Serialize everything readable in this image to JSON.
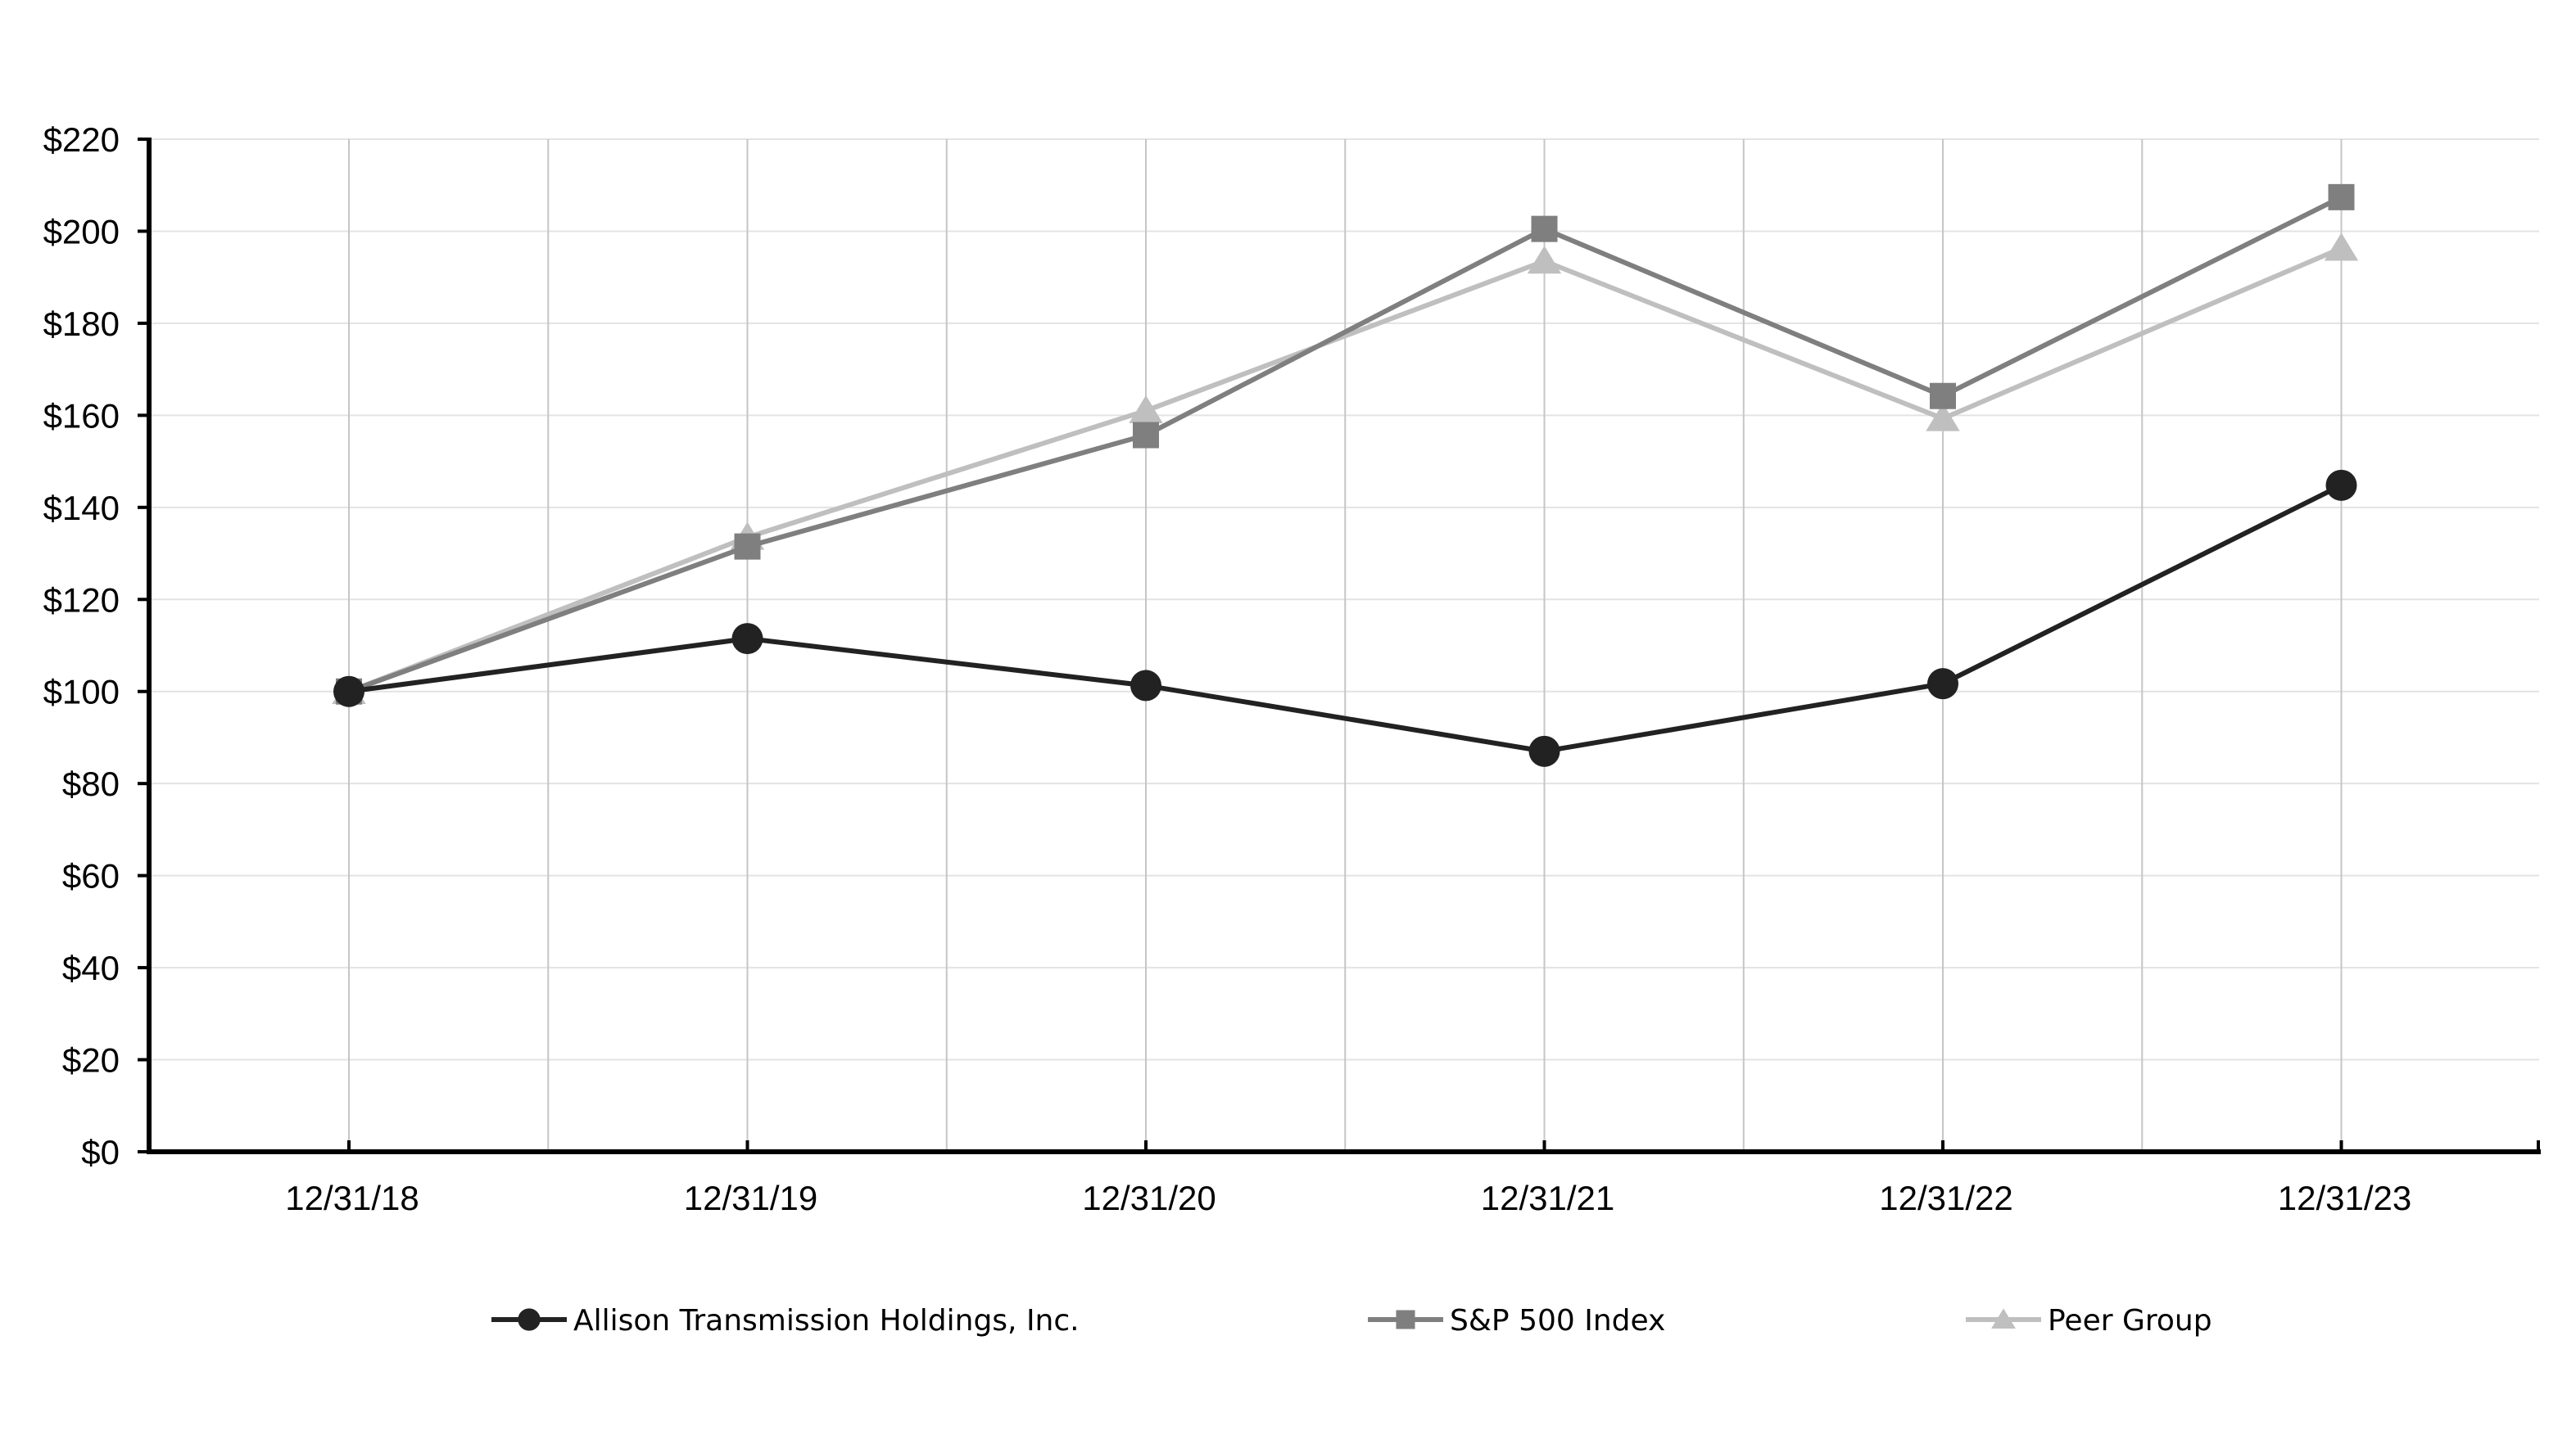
{
  "chart_data": {
    "type": "line",
    "title": "",
    "xlabel": "",
    "ylabel": "",
    "categories": [
      "12/31/18",
      "12/31/19",
      "12/31/20",
      "12/31/21",
      "12/31/22",
      "12/31/23"
    ],
    "y_ticks": [
      "$0",
      "$20",
      "$40",
      "$60",
      "$80",
      "$100",
      "$120",
      "$140",
      "$160",
      "$180",
      "$200",
      "$220"
    ],
    "ylim": [
      0,
      220
    ],
    "grid": true,
    "legend_position": "bottom",
    "series": [
      {
        "name": "Allison Transmission Holdings, Inc.",
        "marker": "circle",
        "color": "#222222",
        "values": [
          100,
          111.5,
          101.3,
          87,
          101.7,
          144.8
        ]
      },
      {
        "name": "S&P 500 Index",
        "marker": "square",
        "color": "#7f7f7f",
        "values": [
          100,
          131.5,
          155.7,
          200.5,
          164.2,
          207.4
        ]
      },
      {
        "name": "Peer Group",
        "marker": "triangle",
        "color": "#bfbfbf",
        "values": [
          100,
          133.5,
          161,
          193.5,
          159.3,
          196.3
        ]
      }
    ]
  }
}
